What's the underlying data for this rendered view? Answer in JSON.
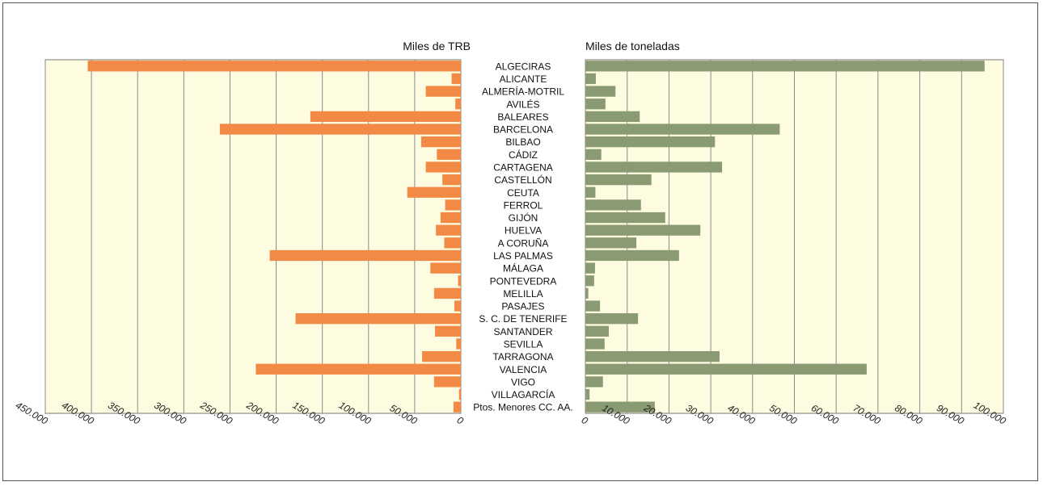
{
  "chart_data": {
    "type": "bar",
    "orientation": "horizontal",
    "layout": "back-to-back",
    "categories": [
      "ALGECIRAS",
      "ALICANTE",
      "ALMERÍA-MOTRIL",
      "AVILÉS",
      "BALEARES",
      "BARCELONA",
      "BILBAO",
      "CÁDIZ",
      "CARTAGENA",
      "CASTELLÓN",
      "CEUTA",
      "FERROL",
      "GIJÓN",
      "HUELVA",
      "A CORUÑA",
      "LAS PALMAS",
      "MÁLAGA",
      "PONTEVEDRA",
      "MELILLA",
      "PASAJES",
      "S. C. DE TENERIFE",
      "SANTANDER",
      "SEVILLA",
      "TARRAGONA",
      "VALENCIA",
      "VIGO",
      "VILLAGARCÍA",
      "Ptos. Menores CC. AA."
    ],
    "panels": [
      {
        "title": "Miles de TRB",
        "direction": "right-to-left",
        "xlim": [
          0,
          450000
        ],
        "ticks": [
          "0",
          "50.000",
          "100.000",
          "150.000",
          "200.000",
          "250.000",
          "300.000",
          "350.000",
          "400.000",
          "450.000"
        ],
        "tick_values": [
          0,
          50000,
          100000,
          150000,
          200000,
          250000,
          300000,
          350000,
          400000,
          450000
        ],
        "grid": true,
        "bar_color": "#f28a45",
        "values": [
          404000,
          10000,
          38000,
          6000,
          163000,
          261000,
          43000,
          26000,
          38000,
          20000,
          58000,
          17000,
          22000,
          27000,
          18000,
          207000,
          33000,
          3000,
          29000,
          7000,
          179000,
          28000,
          5000,
          42000,
          222000,
          29000,
          2000,
          8000
        ]
      },
      {
        "title": "Miles de toneladas",
        "direction": "left-to-right",
        "xlim": [
          0,
          100000
        ],
        "ticks": [
          "0",
          "10.000",
          "20.000",
          "30.000",
          "40.000",
          "50.000",
          "60.000",
          "70.000",
          "80.000",
          "90.000",
          "100.000"
        ],
        "tick_values": [
          0,
          10000,
          20000,
          30000,
          40000,
          50000,
          60000,
          70000,
          80000,
          90000,
          100000
        ],
        "grid": true,
        "bar_color": "#8a9a72",
        "values": [
          95500,
          2500,
          7200,
          4800,
          13000,
          46500,
          31000,
          3800,
          32700,
          15800,
          2400,
          13300,
          19100,
          27500,
          12200,
          22400,
          2300,
          2100,
          700,
          3500,
          12600,
          5600,
          4600,
          32100,
          67300,
          4200,
          1000,
          16600
        ]
      }
    ],
    "plot_background": "#fdfbe0"
  }
}
